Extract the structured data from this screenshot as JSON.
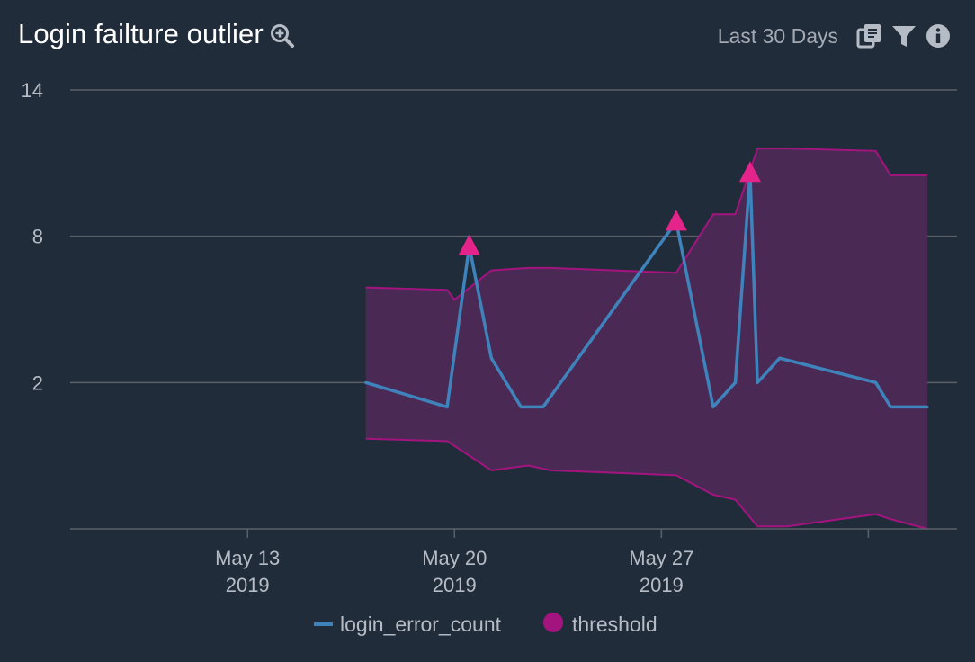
{
  "header": {
    "title": "Login failture outlier",
    "zoom_icon": "zoom-in-icon",
    "range_label": "Last 30 Days",
    "icons": [
      "copy-icon",
      "filter-icon",
      "info-icon"
    ]
  },
  "colors": {
    "background": "#212c3a",
    "line": "#3f83bc",
    "band_fill": "#4a2a55",
    "band_edge": "#a3147f",
    "marker": "#e5248b",
    "grid": "#5b6068",
    "text": "#b6bcc5"
  },
  "chart_data": {
    "type": "line",
    "title": "Login failture outlier",
    "xlabel": "",
    "ylabel": "",
    "ylim": [
      -4,
      14
    ],
    "yticks": [
      "14",
      "8",
      "2"
    ],
    "ytick_values": [
      14,
      8,
      2
    ],
    "xlim": [
      "2019-05-07",
      "2019-06-06"
    ],
    "xticks": [
      {
        "date": "2019-05-13",
        "line1": "May 13",
        "line2": "2019"
      },
      {
        "date": "2019-05-20",
        "line1": "May 20",
        "line2": "2019"
      },
      {
        "date": "2019-05-27",
        "line1": "May 27",
        "line2": "2019"
      },
      {
        "date": "2019-06-03",
        "line1": "",
        "line2": ""
      }
    ],
    "grid": true,
    "legend_position": "bottom",
    "series": [
      {
        "name": "login_error_count",
        "kind": "line",
        "points": [
          {
            "x": "2019-05-17 00:00",
            "y": 2
          },
          {
            "x": "2019-05-19 18:00",
            "y": 1
          },
          {
            "x": "2019-05-20 12:00",
            "y": 7.6
          },
          {
            "x": "2019-05-21 06:00",
            "y": 3
          },
          {
            "x": "2019-05-22 06:00",
            "y": 1
          },
          {
            "x": "2019-05-23 00:00",
            "y": 1
          },
          {
            "x": "2019-05-27 12:00",
            "y": 8.6
          },
          {
            "x": "2019-05-28 18:00",
            "y": 1
          },
          {
            "x": "2019-05-29 12:00",
            "y": 2
          },
          {
            "x": "2019-05-30 00:00",
            "y": 10.6
          },
          {
            "x": "2019-05-30 06:00",
            "y": 2
          },
          {
            "x": "2019-05-31 00:00",
            "y": 3
          },
          {
            "x": "2019-06-03 06:00",
            "y": 2
          },
          {
            "x": "2019-06-03 18:00",
            "y": 1
          },
          {
            "x": "2019-06-05 00:00",
            "y": 1
          }
        ]
      },
      {
        "name": "threshold",
        "kind": "band",
        "points": [
          {
            "x": "2019-05-17 00:00",
            "low": -0.3,
            "high": 5.9
          },
          {
            "x": "2019-05-19 18:00",
            "low": -0.4,
            "high": 5.8
          },
          {
            "x": "2019-05-20 00:00",
            "low": -0.6,
            "high": 5.4
          },
          {
            "x": "2019-05-21 06:00",
            "low": -1.6,
            "high": 6.6
          },
          {
            "x": "2019-05-22 12:00",
            "low": -1.4,
            "high": 6.7
          },
          {
            "x": "2019-05-23 06:00",
            "low": -1.6,
            "high": 6.7
          },
          {
            "x": "2019-05-27 12:00",
            "low": -1.8,
            "high": 6.5
          },
          {
            "x": "2019-05-28 18:00",
            "low": -2.6,
            "high": 8.9
          },
          {
            "x": "2019-05-29 12:00",
            "low": -2.8,
            "high": 8.9
          },
          {
            "x": "2019-05-30 06:00",
            "low": -3.9,
            "high": 11.6
          },
          {
            "x": "2019-05-31 06:00",
            "low": -3.9,
            "high": 11.6
          },
          {
            "x": "2019-06-03 06:00",
            "low": -3.4,
            "high": 11.5
          },
          {
            "x": "2019-06-03 18:00",
            "low": -3.6,
            "high": 10.5
          },
          {
            "x": "2019-06-05 00:00",
            "low": -4,
            "high": 10.5
          }
        ]
      }
    ],
    "outliers": [
      {
        "x": "2019-05-20 12:00",
        "y": 7.6
      },
      {
        "x": "2019-05-27 12:00",
        "y": 8.6
      },
      {
        "x": "2019-05-30 00:00",
        "y": 10.6
      }
    ]
  }
}
